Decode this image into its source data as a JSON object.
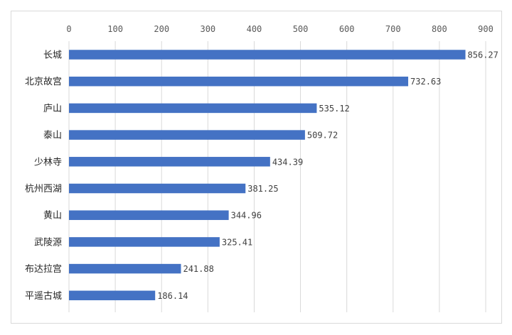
{
  "chart_data": {
    "type": "bar",
    "orientation": "horizontal",
    "title": "",
    "xlabel": "",
    "ylabel": "",
    "xlim": [
      0,
      900
    ],
    "ticks": [
      0,
      100,
      200,
      300,
      400,
      500,
      600,
      700,
      800,
      900
    ],
    "grid": true,
    "legend": "none",
    "categories": [
      "长城",
      "北京故宫",
      "庐山",
      "泰山",
      "少林寺",
      "杭州西湖",
      "黄山",
      "武陵源",
      "布达拉宫",
      "平遥古城"
    ],
    "values": [
      856.27,
      732.63,
      535.12,
      509.72,
      434.39,
      381.25,
      344.96,
      325.41,
      241.88,
      186.14
    ],
    "value_labels": [
      "856.27",
      "732.63",
      "535.12",
      "509.72",
      "434.39",
      "381.25",
      "344.96",
      "325.41",
      "241.88",
      "186.14"
    ],
    "colors": {
      "bar": "#4472c4",
      "grid": "#d9d9d9",
      "border": "#d9d9d9"
    }
  }
}
